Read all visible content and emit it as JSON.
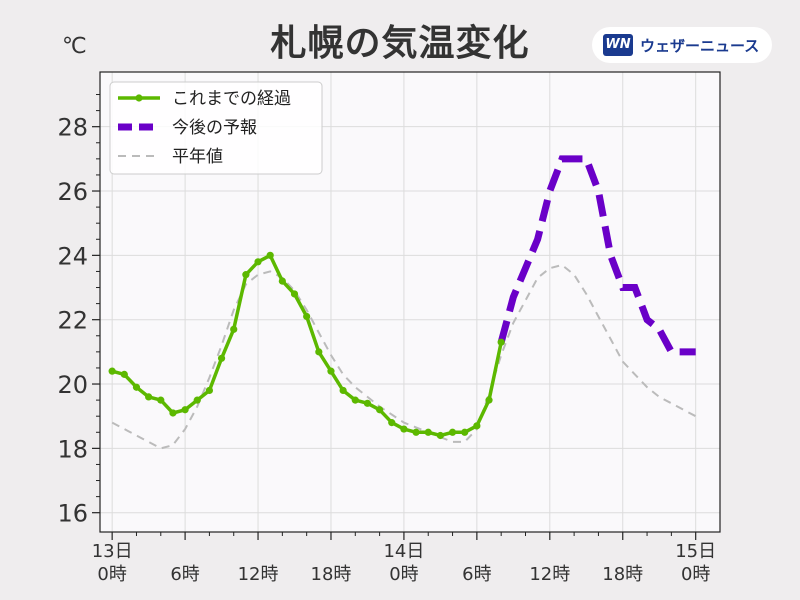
{
  "header": {
    "title": "札幌の気温変化",
    "unit": "℃",
    "brand": {
      "logo_text": "WN",
      "name": "ウェザーニュース"
    }
  },
  "colors": {
    "observed": "#5cb800",
    "forecast": "#6a00c8",
    "normal": "#bbbbbb",
    "grid": "#dcdcdc",
    "plot_bg": "#faf9fb"
  },
  "chart_data": {
    "type": "line",
    "title": "札幌の気温変化",
    "ylabel": "℃",
    "xlabel": "",
    "xlim": [
      -1,
      50
    ],
    "ylim": [
      15.4,
      29.7
    ],
    "grid": true,
    "legend_position": "top-left",
    "y_ticks": [
      16,
      18,
      20,
      22,
      24,
      26,
      28
    ],
    "x_ticks": [
      {
        "x": 0,
        "lines": [
          "13日",
          "0時"
        ]
      },
      {
        "x": 6,
        "lines": [
          "",
          "6時"
        ]
      },
      {
        "x": 12,
        "lines": [
          "",
          "12時"
        ]
      },
      {
        "x": 18,
        "lines": [
          "",
          "18時"
        ]
      },
      {
        "x": 24,
        "lines": [
          "14日",
          "0時"
        ]
      },
      {
        "x": 30,
        "lines": [
          "",
          "6時"
        ]
      },
      {
        "x": 36,
        "lines": [
          "",
          "12時"
        ]
      },
      {
        "x": 42,
        "lines": [
          "",
          "18時"
        ]
      },
      {
        "x": 48,
        "lines": [
          "15日",
          "0時"
        ]
      }
    ],
    "series": [
      {
        "name": "これまでの経過",
        "style": "solid-markers",
        "x": [
          0,
          1,
          2,
          3,
          4,
          5,
          6,
          7,
          8,
          9,
          10,
          11,
          12,
          13,
          14,
          15,
          16,
          17,
          18,
          19,
          20,
          21,
          22,
          23,
          24,
          25,
          26,
          27,
          28,
          29,
          30,
          31,
          32
        ],
        "y": [
          20.4,
          20.3,
          19.9,
          19.6,
          19.5,
          19.1,
          19.2,
          19.5,
          19.8,
          20.8,
          21.7,
          23.4,
          23.8,
          24.0,
          23.2,
          22.8,
          22.1,
          21.0,
          20.4,
          19.8,
          19.5,
          19.4,
          19.2,
          18.8,
          18.6,
          18.5,
          18.5,
          18.4,
          18.5,
          18.5,
          18.7,
          19.5,
          21.3
        ]
      },
      {
        "name": "今後の予報",
        "style": "thick-dashed",
        "x": [
          32,
          33,
          34,
          35,
          36,
          37,
          38,
          39,
          40,
          41,
          42,
          43,
          44,
          45,
          46,
          47,
          48
        ],
        "y": [
          21.3,
          22.7,
          23.6,
          24.5,
          26.0,
          27.0,
          27.0,
          27.0,
          26.0,
          24.0,
          23.0,
          23.0,
          22.0,
          21.7,
          21.0,
          21.0,
          21.0
        ]
      },
      {
        "name": "平年値",
        "style": "thin-dashed",
        "x": [
          0,
          2,
          4,
          5,
          6,
          7,
          8,
          9,
          10,
          11,
          12,
          13,
          14,
          15,
          16,
          17,
          18,
          19,
          20,
          22,
          24,
          26,
          28,
          29,
          30,
          31,
          32,
          33,
          34,
          35,
          36,
          37,
          38,
          39,
          40,
          41,
          42,
          43,
          44,
          45,
          46,
          47,
          48
        ],
        "y": [
          18.8,
          18.4,
          18.0,
          18.1,
          18.6,
          19.3,
          20.2,
          21.2,
          22.3,
          23.1,
          23.4,
          23.5,
          23.3,
          22.9,
          22.3,
          21.6,
          20.9,
          20.3,
          19.9,
          19.3,
          18.8,
          18.5,
          18.2,
          18.2,
          18.6,
          19.7,
          20.9,
          21.9,
          22.6,
          23.3,
          23.6,
          23.7,
          23.4,
          22.8,
          22.1,
          21.4,
          20.7,
          20.3,
          19.9,
          19.6,
          19.4,
          19.2,
          19.0
        ]
      }
    ]
  }
}
